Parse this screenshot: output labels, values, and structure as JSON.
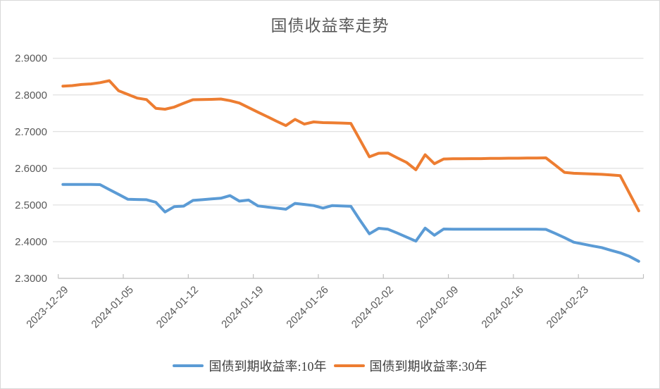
{
  "title": "国债收益率走势",
  "colors": {
    "series_10y": "#5B9BD5",
    "series_30y": "#ED7D31",
    "gridline": "#D9D9D9",
    "axis_line": "#BFBFBF",
    "label_text": "#595959",
    "title_text": "#595959",
    "background": "#FFFFFF"
  },
  "chart_data": {
    "type": "line",
    "title": "国债收益率走势",
    "xlabel": "",
    "ylabel": "",
    "ylim": [
      2.3,
      2.9
    ],
    "y_ticks": [
      "2.3000",
      "2.4000",
      "2.5000",
      "2.6000",
      "2.7000",
      "2.8000",
      "2.9000"
    ],
    "grid": "horizontal",
    "legend_position": "bottom",
    "x_tick_labels": [
      "2023-12-29",
      "2024-01-05",
      "2024-01-12",
      "2024-01-19",
      "2024-01-26",
      "2024-02-02",
      "2024-02-09",
      "2024-02-16",
      "2024-02-23"
    ],
    "x": [
      "2023-12-29",
      "2023-12-30",
      "2023-12-31",
      "2024-01-01",
      "2024-01-02",
      "2024-01-03",
      "2024-01-04",
      "2024-01-05",
      "2024-01-06",
      "2024-01-07",
      "2024-01-08",
      "2024-01-09",
      "2024-01-10",
      "2024-01-11",
      "2024-01-12",
      "2024-01-13",
      "2024-01-14",
      "2024-01-15",
      "2024-01-16",
      "2024-01-17",
      "2024-01-18",
      "2024-01-19",
      "2024-01-20",
      "2024-01-21",
      "2024-01-22",
      "2024-01-23",
      "2024-01-24",
      "2024-01-25",
      "2024-01-26",
      "2024-01-27",
      "2024-01-28",
      "2024-01-29",
      "2024-01-30",
      "2024-01-31",
      "2024-02-01",
      "2024-02-02",
      "2024-02-03",
      "2024-02-04",
      "2024-02-05",
      "2024-02-06",
      "2024-02-07",
      "2024-02-08",
      "2024-02-09",
      "2024-02-10",
      "2024-02-11",
      "2024-02-12",
      "2024-02-13",
      "2024-02-14",
      "2024-02-15",
      "2024-02-16",
      "2024-02-17",
      "2024-02-18",
      "2024-02-19",
      "2024-02-20",
      "2024-02-21",
      "2024-02-22",
      "2024-02-23",
      "2024-02-24",
      "2024-02-25",
      "2024-02-26",
      "2024-02-27",
      "2024-02-28",
      "2024-02-29"
    ],
    "series": [
      {
        "name": "国债到期收益率:10年",
        "color": "#5B9BD5",
        "values": [
          2.556,
          2.556,
          2.556,
          2.556,
          2.5555,
          2.542,
          2.529,
          2.5155,
          2.515,
          2.5145,
          2.5075,
          2.481,
          2.4955,
          2.497,
          2.5125,
          2.5145,
          2.5165,
          2.5185,
          2.5255,
          2.5105,
          2.5135,
          2.4975,
          2.4945,
          2.4915,
          2.4885,
          2.5045,
          2.5015,
          2.4985,
          2.4915,
          2.4985,
          2.4975,
          2.4965,
          2.458,
          2.4215,
          2.4365,
          2.434,
          2.4235,
          2.4125,
          2.4015,
          2.437,
          2.4175,
          2.4345,
          2.434,
          2.434,
          2.434,
          2.434,
          2.434,
          2.434,
          2.434,
          2.434,
          2.434,
          2.434,
          2.4335,
          2.4225,
          2.411,
          2.3985,
          2.3935,
          2.3885,
          2.384,
          2.3765,
          2.3695,
          2.36,
          2.3465
        ]
      },
      {
        "name": "国债到期收益率:30年",
        "color": "#ED7D31",
        "values": [
          2.824,
          2.8255,
          2.8285,
          2.83,
          2.8335,
          2.839,
          2.8115,
          2.8015,
          2.7915,
          2.7875,
          2.7635,
          2.761,
          2.767,
          2.7775,
          2.787,
          2.7875,
          2.788,
          2.789,
          2.7845,
          2.778,
          2.7655,
          2.753,
          2.741,
          2.7285,
          2.7165,
          2.7335,
          2.7205,
          2.7265,
          2.7245,
          2.724,
          2.7235,
          2.7225,
          2.677,
          2.6315,
          2.641,
          2.6415,
          2.6285,
          2.616,
          2.596,
          2.637,
          2.6125,
          2.6255,
          2.626,
          2.626,
          2.6265,
          2.6265,
          2.627,
          2.627,
          2.6275,
          2.6275,
          2.628,
          2.628,
          2.6285,
          2.609,
          2.589,
          2.5865,
          2.5855,
          2.5845,
          2.5835,
          2.582,
          2.58,
          2.532,
          2.484
        ]
      }
    ]
  }
}
